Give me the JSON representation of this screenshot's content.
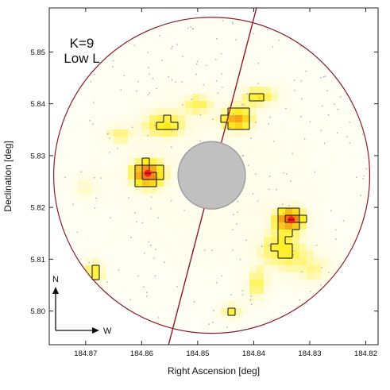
{
  "chart_data": {
    "type": "heatmap",
    "title": "",
    "annotation_lines": [
      "K=9",
      "Low L"
    ],
    "xlabel": "Right Ascension [deg]",
    "ylabel": "Declination [deg]",
    "xlim": [
      184.8765,
      184.8178
    ],
    "ylim": [
      5.7935,
      5.8585
    ],
    "x_ticks": [
      184.87,
      184.86,
      184.85,
      184.84,
      184.83,
      184.82
    ],
    "x_tick_labels": [
      "184.87",
      "184.86",
      "184.85",
      "184.84",
      "184.83",
      "184.82"
    ],
    "y_ticks": [
      5.8,
      5.81,
      5.82,
      5.83,
      5.84,
      5.85
    ],
    "y_tick_labels": [
      "5.80",
      "5.81",
      "5.82",
      "5.83",
      "5.84",
      "5.85"
    ],
    "grid": false,
    "outer_circle": {
      "center": [
        184.8475,
        5.8262
      ],
      "radius_deg": 0.0305
    },
    "masked_center": {
      "center": [
        184.8475,
        5.8262
      ],
      "radius_deg": 0.0065,
      "color": "#c0c0c0"
    },
    "slit_line": {
      "x": [
        184.8552,
        184.8395
      ],
      "y": [
        5.7935,
        5.8585
      ],
      "color": "#8b1a2a"
    },
    "density_peaks": [
      {
        "x": 184.859,
        "y": 5.8265,
        "amp": 1.0,
        "sx": 0.0022,
        "sy": 0.002
      },
      {
        "x": 184.856,
        "y": 5.836,
        "amp": 0.55,
        "sx": 0.003,
        "sy": 0.002
      },
      {
        "x": 184.843,
        "y": 5.837,
        "amp": 0.85,
        "sx": 0.002,
        "sy": 0.0016
      },
      {
        "x": 184.839,
        "y": 5.8415,
        "amp": 0.55,
        "sx": 0.0025,
        "sy": 0.0015
      },
      {
        "x": 184.85,
        "y": 5.84,
        "amp": 0.45,
        "sx": 0.002,
        "sy": 0.0015
      },
      {
        "x": 184.8335,
        "y": 5.8178,
        "amp": 1.0,
        "sx": 0.002,
        "sy": 0.0016
      },
      {
        "x": 184.835,
        "y": 5.812,
        "amp": 0.55,
        "sx": 0.003,
        "sy": 0.003
      },
      {
        "x": 184.8395,
        "y": 5.805,
        "amp": 0.5,
        "sx": 0.0015,
        "sy": 0.0025
      },
      {
        "x": 184.8685,
        "y": 5.8075,
        "amp": 0.6,
        "sx": 0.0015,
        "sy": 0.0018
      },
      {
        "x": 184.844,
        "y": 5.8,
        "amp": 0.55,
        "sx": 0.0015,
        "sy": 0.0012
      },
      {
        "x": 184.864,
        "y": 5.834,
        "amp": 0.4,
        "sx": 0.002,
        "sy": 0.0015
      },
      {
        "x": 184.87,
        "y": 5.824,
        "amp": 0.3,
        "sx": 0.002,
        "sy": 0.002
      },
      {
        "x": 184.829,
        "y": 5.808,
        "amp": 0.35,
        "sx": 0.003,
        "sy": 0.003
      }
    ],
    "red_markers": [
      {
        "x": 184.8589,
        "y": 5.8266
      },
      {
        "x": 184.8333,
        "y": 5.8176
      }
    ],
    "compass": {
      "north_label": "N",
      "west_label": "W"
    },
    "colors": {
      "low": "#fffce0",
      "mid": "#ffee22",
      "high": "#f39419",
      "peak": "#cc2a0c",
      "circle": "#8b1a2a"
    }
  }
}
